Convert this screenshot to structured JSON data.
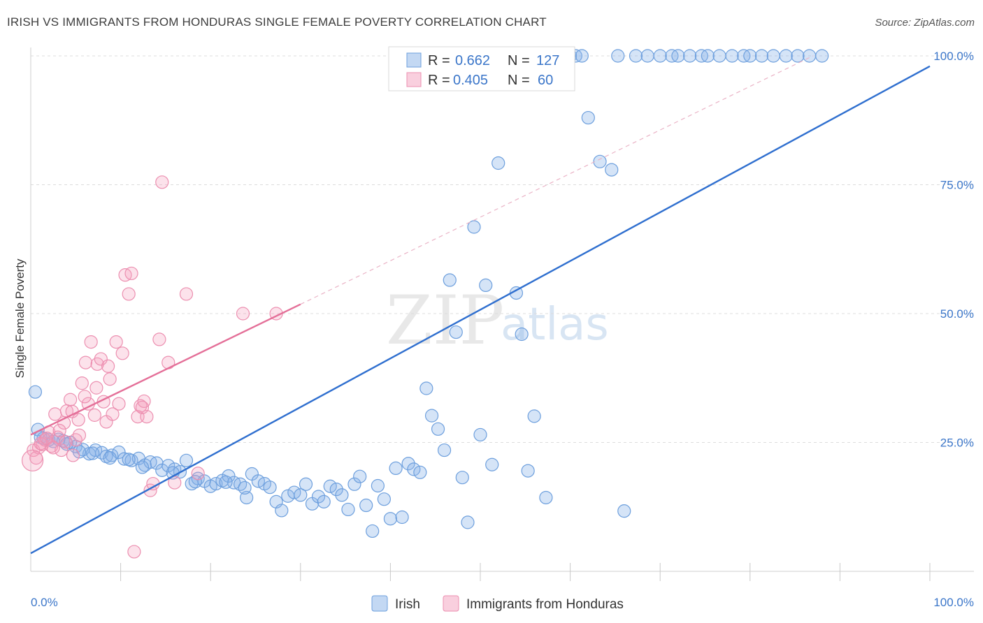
{
  "title": "IRISH VS IMMIGRANTS FROM HONDURAS SINGLE FEMALE POVERTY CORRELATION CHART",
  "source": "Source: ZipAtlas.com",
  "watermark": {
    "zip": "ZIP",
    "atlas": "atlas"
  },
  "colors": {
    "blue": "#6d9fdd",
    "blue_line": "#2f6fcf",
    "pink": "#ec8fb0",
    "pink_line": "#e46f98",
    "tick_text": "#3b76c9"
  },
  "chart_data": {
    "type": "scatter",
    "xlabel": "",
    "ylabel": "Single Female Poverty",
    "xlim": [
      0,
      100
    ],
    "ylim": [
      0,
      100
    ],
    "x_tick_labels": [
      "0.0%",
      "100.0%"
    ],
    "y_ticks": [
      {
        "value": 25,
        "label": "25.0%"
      },
      {
        "value": 50,
        "label": "50.0%"
      },
      {
        "value": 75,
        "label": "75.0%"
      },
      {
        "value": 100,
        "label": "100.0%"
      }
    ],
    "legend": [
      {
        "series": "Irish",
        "r_label": "R =",
        "r": "0.662",
        "n_label": "N =",
        "n": "127"
      },
      {
        "series": "Immigrants from Honduras",
        "r_label": "R =",
        "r": "0.405",
        "n_label": "N =",
        "n": "60"
      }
    ],
    "series": [
      {
        "name": "Irish",
        "color": "#6d9fdd",
        "trend": {
          "x0": 0,
          "y0": 3.5,
          "x1": 100,
          "y1": 98
        },
        "points": [
          [
            0.5,
            34.8
          ],
          [
            0.8,
            27.5
          ],
          [
            1.4,
            25.8
          ],
          [
            2.0,
            25.5
          ],
          [
            3.1,
            25.6
          ],
          [
            3.6,
            25.3
          ],
          [
            4.4,
            25.0
          ],
          [
            5.0,
            24.2
          ],
          [
            5.8,
            23.6
          ],
          [
            6.5,
            22.8
          ],
          [
            7.2,
            23.5
          ],
          [
            7.9,
            23.0
          ],
          [
            8.4,
            22.3
          ],
          [
            9.0,
            22.5
          ],
          [
            9.8,
            23.1
          ],
          [
            10.4,
            21.8
          ],
          [
            11.2,
            21.5
          ],
          [
            12.0,
            21.9
          ],
          [
            12.7,
            20.6
          ],
          [
            13.3,
            21.2
          ],
          [
            14.0,
            21.0
          ],
          [
            14.6,
            19.6
          ],
          [
            15.3,
            20.5
          ],
          [
            16.0,
            19.8
          ],
          [
            16.6,
            19.3
          ],
          [
            17.3,
            21.5
          ],
          [
            17.9,
            17.0
          ],
          [
            18.6,
            18.0
          ],
          [
            19.3,
            17.5
          ],
          [
            20.0,
            16.5
          ],
          [
            20.6,
            17.0
          ],
          [
            21.3,
            17.6
          ],
          [
            22.0,
            18.5
          ],
          [
            22.6,
            17.2
          ],
          [
            23.3,
            16.9
          ],
          [
            24.0,
            14.3
          ],
          [
            24.6,
            18.9
          ],
          [
            25.3,
            17.5
          ],
          [
            26.0,
            17.0
          ],
          [
            26.6,
            16.3
          ],
          [
            27.3,
            13.5
          ],
          [
            27.9,
            11.8
          ],
          [
            28.6,
            14.6
          ],
          [
            29.3,
            15.3
          ],
          [
            30.0,
            14.8
          ],
          [
            30.6,
            16.9
          ],
          [
            31.3,
            13.1
          ],
          [
            32.0,
            14.5
          ],
          [
            32.6,
            13.5
          ],
          [
            33.3,
            16.5
          ],
          [
            34.0,
            15.9
          ],
          [
            34.6,
            14.8
          ],
          [
            35.3,
            12.0
          ],
          [
            36.0,
            16.9
          ],
          [
            36.6,
            18.4
          ],
          [
            37.3,
            12.8
          ],
          [
            38.0,
            7.8
          ],
          [
            38.6,
            16.6
          ],
          [
            39.3,
            14.0
          ],
          [
            40.0,
            10.2
          ],
          [
            40.6,
            20.0
          ],
          [
            41.3,
            10.5
          ],
          [
            42.0,
            20.9
          ],
          [
            42.6,
            19.8
          ],
          [
            43.3,
            19.2
          ],
          [
            44.0,
            35.5
          ],
          [
            44.6,
            30.2
          ],
          [
            45.3,
            27.6
          ],
          [
            46.0,
            23.5
          ],
          [
            46.6,
            56.5
          ],
          [
            47.3,
            46.4
          ],
          [
            48.0,
            18.2
          ],
          [
            48.6,
            9.5
          ],
          [
            49.3,
            66.8
          ],
          [
            50.0,
            26.5
          ],
          [
            50.6,
            55.5
          ],
          [
            51.3,
            20.7
          ],
          [
            52.0,
            79.2
          ],
          [
            52.6,
            96.0
          ],
          [
            53.3,
            100.0
          ],
          [
            54.0,
            54.0
          ],
          [
            54.6,
            46.0
          ],
          [
            55.3,
            19.5
          ],
          [
            56.0,
            30.1
          ],
          [
            56.6,
            100.0
          ],
          [
            57.3,
            14.3
          ],
          [
            58.0,
            100.0
          ],
          [
            58.6,
            100.0
          ],
          [
            59.3,
            100.0
          ],
          [
            60.0,
            100.0
          ],
          [
            60.6,
            100.0
          ],
          [
            61.3,
            100.0
          ],
          [
            62.0,
            88.0
          ],
          [
            63.3,
            79.5
          ],
          [
            64.6,
            77.9
          ],
          [
            65.3,
            100.0
          ],
          [
            66.0,
            11.7
          ],
          [
            67.3,
            100.0
          ],
          [
            68.6,
            100.0
          ],
          [
            70.0,
            100.0
          ],
          [
            71.3,
            100.0
          ],
          [
            72.0,
            100.0
          ],
          [
            73.3,
            100.0
          ],
          [
            74.6,
            100.0
          ],
          [
            75.3,
            100.0
          ],
          [
            76.6,
            100.0
          ],
          [
            78.0,
            100.0
          ],
          [
            79.3,
            100.0
          ],
          [
            80.0,
            100.0
          ],
          [
            81.3,
            100.0
          ],
          [
            82.6,
            100.0
          ],
          [
            84.0,
            100.0
          ],
          [
            85.3,
            100.0
          ],
          [
            86.6,
            100.0
          ],
          [
            88.0,
            100.0
          ],
          [
            1.1,
            26.0
          ],
          [
            2.5,
            25.2
          ],
          [
            4.0,
            24.7
          ],
          [
            5.4,
            23.2
          ],
          [
            6.9,
            22.9
          ],
          [
            8.8,
            22.0
          ],
          [
            10.9,
            21.7
          ],
          [
            12.4,
            20.2
          ],
          [
            15.8,
            19.1
          ],
          [
            18.3,
            17.4
          ],
          [
            21.7,
            17.3
          ],
          [
            23.8,
            16.2
          ]
        ]
      },
      {
        "name": "Immigrants from Honduras",
        "color": "#ec8fb0",
        "trend": {
          "x0": 0,
          "y0": 26.5,
          "x1": 30,
          "y1": 51.8
        },
        "trend_dashed": {
          "x0": 30,
          "y0": 51.8,
          "x1": 87,
          "y1": 100
        },
        "points": [
          [
            0.3,
            23.5
          ],
          [
            0.6,
            22.0
          ],
          [
            0.9,
            24.0
          ],
          [
            1.3,
            24.6
          ],
          [
            1.6,
            25.5
          ],
          [
            2.0,
            27.0
          ],
          [
            2.3,
            24.3
          ],
          [
            2.7,
            30.5
          ],
          [
            3.0,
            26.0
          ],
          [
            3.4,
            23.5
          ],
          [
            3.7,
            28.8
          ],
          [
            4.0,
            31.1
          ],
          [
            4.4,
            33.3
          ],
          [
            4.7,
            22.5
          ],
          [
            5.0,
            25.5
          ],
          [
            5.4,
            26.4
          ],
          [
            5.7,
            36.5
          ],
          [
            6.1,
            40.5
          ],
          [
            6.4,
            32.5
          ],
          [
            6.7,
            44.5
          ],
          [
            7.1,
            30.3
          ],
          [
            7.4,
            40.2
          ],
          [
            7.8,
            41.2
          ],
          [
            8.1,
            32.9
          ],
          [
            8.4,
            29.0
          ],
          [
            8.8,
            37.3
          ],
          [
            9.1,
            30.5
          ],
          [
            9.5,
            44.5
          ],
          [
            9.8,
            32.5
          ],
          [
            10.2,
            42.3
          ],
          [
            10.5,
            57.5
          ],
          [
            10.9,
            53.8
          ],
          [
            11.2,
            57.8
          ],
          [
            11.5,
            3.8
          ],
          [
            11.9,
            30.0
          ],
          [
            12.2,
            32.1
          ],
          [
            12.6,
            33.0
          ],
          [
            12.9,
            30.0
          ],
          [
            13.3,
            15.7
          ],
          [
            13.6,
            17.0
          ],
          [
            14.3,
            45.0
          ],
          [
            14.6,
            75.5
          ],
          [
            15.3,
            40.5
          ],
          [
            16.0,
            17.2
          ],
          [
            17.3,
            53.8
          ],
          [
            18.6,
            19.0
          ],
          [
            23.6,
            50.0
          ],
          [
            27.3,
            50.0
          ],
          [
            1.1,
            24.8
          ],
          [
            1.8,
            25.8
          ],
          [
            2.5,
            24.0
          ],
          [
            3.2,
            27.3
          ],
          [
            3.9,
            25.1
          ],
          [
            4.6,
            31.0
          ],
          [
            5.3,
            29.4
          ],
          [
            6.0,
            33.9
          ],
          [
            7.3,
            35.6
          ],
          [
            8.6,
            39.8
          ],
          [
            12.4,
            31.8
          ],
          [
            0.2,
            21.5
          ]
        ]
      }
    ]
  }
}
